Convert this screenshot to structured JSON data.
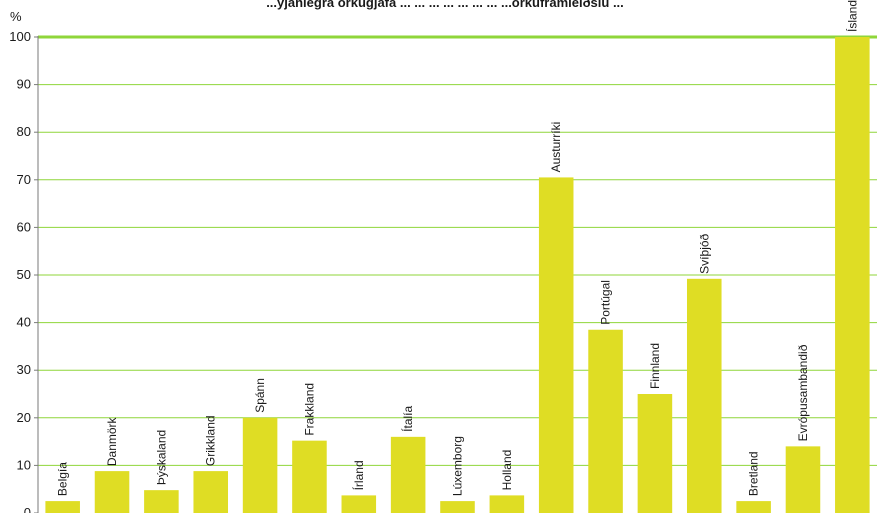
{
  "chart_data": {
    "type": "bar",
    "title": "...yjanlegra orkugjafa ... ... ... ... ... ... ... ...orkuframleiðslu ...",
    "ylabel": "%",
    "ylim": [
      0,
      100
    ],
    "yticks": [
      0,
      10,
      20,
      30,
      40,
      50,
      60,
      70,
      80,
      90,
      100
    ],
    "grid": true,
    "categories": [
      "Belgía",
      "Danmörk",
      "Þýskaland",
      "Grikkland",
      "Spánn",
      "Frakkland",
      "Írland",
      "Ítalía",
      "Lúxemborg",
      "Holland",
      "Austurríki",
      "Portúgal",
      "Finnland",
      "Svíþjóð",
      "Bretland",
      "Evrópusambandið",
      "Ísland"
    ],
    "values": [
      2.5,
      8.8,
      4.8,
      8.8,
      20,
      15.2,
      3.7,
      16,
      2.5,
      3.7,
      70.5,
      38.5,
      25,
      49.2,
      2.5,
      14,
      100
    ],
    "colors": {
      "bar": "#dfdd24",
      "grid": "#8fd63a",
      "axis": "#7a7a7a"
    }
  }
}
